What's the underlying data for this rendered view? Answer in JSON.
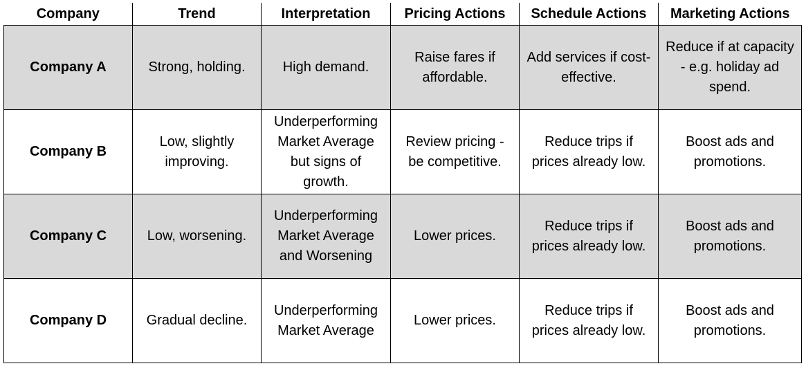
{
  "table": {
    "headers": [
      "Company",
      "Trend",
      "Interpretation",
      "Pricing Actions",
      "Schedule Actions",
      "Marketing Actions"
    ],
    "rows": [
      {
        "company": "Company A",
        "trend": "Strong, holding.",
        "interpretation": "High demand.",
        "pricing": "Raise fares if affordable.",
        "schedule": "Add services if cost-effective.",
        "marketing": "Reduce if at capacity - e.g. holiday ad spend."
      },
      {
        "company": "Company B",
        "trend": "Low, slightly improving.",
        "interpretation": "Underperforming Market Average but signs of growth.",
        "pricing": "Review pricing - be competitive.",
        "schedule": "Reduce trips if prices already low.",
        "marketing": "Boost ads and promotions."
      },
      {
        "company": "Company C",
        "trend": "Low, worsening.",
        "interpretation": "Underperforming Market Average and Worsening",
        "pricing": "Lower prices.",
        "schedule": "Reduce trips if prices already low.",
        "marketing": "Boost ads and promotions."
      },
      {
        "company": "Company D",
        "trend": "Gradual decline.",
        "interpretation": "Underperforming Market Average",
        "pricing": "Lower prices.",
        "schedule": "Reduce trips if prices already low.",
        "marketing": "Boost ads and promotions."
      }
    ],
    "colors": {
      "shaded_row": "#d9d9d9",
      "plain_row": "#ffffff",
      "border": "#000000"
    }
  }
}
